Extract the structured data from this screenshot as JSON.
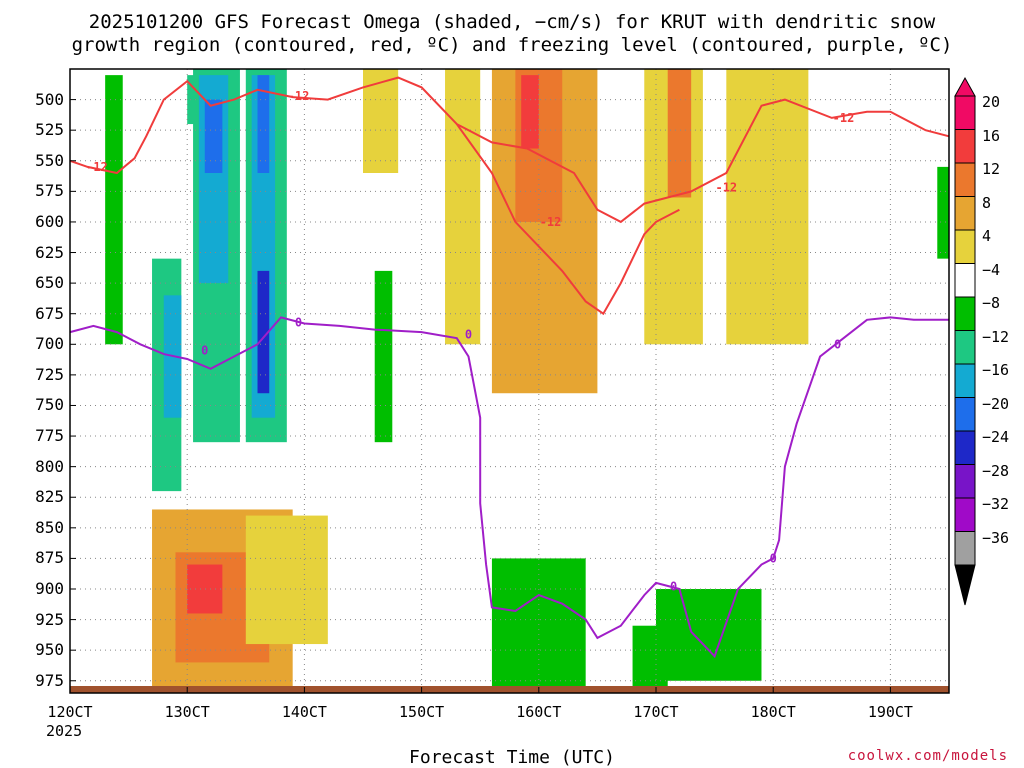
{
  "title_line1": "2025101200 GFS Forecast Omega (shaded, −cm/s) for KRUT with dendritic snow",
  "title_line2": "growth region (contoured, red, ºC) and freezing level (contoured, purple, ºC)",
  "x_axis_title": "Forecast Time (UTC)",
  "x_year": "2025",
  "credit": "coolwx.com/models",
  "chart_data": {
    "type": "heatmap",
    "title": "2025101200 GFS Forecast Omega (shaded, −cm/s) for KRUT with dendritic snow growth region (contoured, red, ºC) and freezing level (contoured, purple, ºC)",
    "xlabel": "Forecast Time (UTC)",
    "ylabel": "",
    "x_range_days": [
      12,
      19.5
    ],
    "y_range_hpa": [
      475,
      985
    ],
    "y_inverted": true,
    "grid": true,
    "x_ticks": [
      {
        "v": 12,
        "label": "120CT"
      },
      {
        "v": 13,
        "label": "130CT"
      },
      {
        "v": 14,
        "label": "140CT"
      },
      {
        "v": 15,
        "label": "150CT"
      },
      {
        "v": 16,
        "label": "160CT"
      },
      {
        "v": 17,
        "label": "170CT"
      },
      {
        "v": 18,
        "label": "180CT"
      },
      {
        "v": 19,
        "label": "190CT"
      }
    ],
    "y_ticks": [
      "500",
      "525",
      "550",
      "575",
      "600",
      "625",
      "650",
      "675",
      "700",
      "725",
      "750",
      "775",
      "800",
      "825",
      "850",
      "875",
      "900",
      "925",
      "950",
      "975"
    ],
    "colorbar": {
      "labels": [
        "20",
        "16",
        "12",
        "8",
        "4",
        "−4",
        "−8",
        "−12",
        "−16",
        "−20",
        "−24",
        "−28",
        "−32",
        "−36"
      ],
      "colors": [
        "#f00a64",
        "#f23c3c",
        "#eb782d",
        "#e6a532",
        "#e6d23c",
        "#ffffff",
        "#00be00",
        "#1ec882",
        "#14aad2",
        "#1e6eeb",
        "#1e28c8",
        "#7814c8",
        "#a00ac8",
        "#a0a0a0"
      ]
    },
    "contour_red_label": "-12",
    "contour_purple_label": "0",
    "red_contour_-12C": [
      [
        12.0,
        550
      ],
      [
        12.15,
        555
      ],
      [
        12.4,
        560
      ],
      [
        12.55,
        548
      ],
      [
        12.65,
        530
      ],
      [
        12.8,
        500
      ],
      [
        13.0,
        485
      ],
      [
        13.2,
        505
      ],
      [
        13.4,
        500
      ],
      [
        13.6,
        492
      ],
      [
        13.9,
        498
      ],
      [
        14.2,
        500
      ],
      [
        14.5,
        490
      ],
      [
        14.8,
        482
      ],
      [
        15.0,
        490
      ],
      [
        15.3,
        520
      ],
      [
        15.6,
        535
      ],
      [
        15.9,
        540
      ],
      [
        16.1,
        550
      ],
      [
        16.3,
        560
      ],
      [
        16.5,
        590
      ],
      [
        16.7,
        600
      ],
      [
        16.9,
        585
      ],
      [
        17.1,
        580
      ],
      [
        17.3,
        575
      ],
      [
        17.6,
        560
      ],
      [
        17.9,
        505
      ],
      [
        18.1,
        500
      ],
      [
        18.5,
        515
      ],
      [
        18.8,
        510
      ],
      [
        19.0,
        510
      ],
      [
        19.3,
        525
      ],
      [
        19.5,
        530
      ]
    ],
    "red_contour_-12C_lower": [
      [
        15.3,
        520
      ],
      [
        15.6,
        560
      ],
      [
        15.8,
        600
      ],
      [
        16.0,
        620
      ],
      [
        16.2,
        640
      ],
      [
        16.4,
        665
      ],
      [
        16.55,
        675
      ],
      [
        16.7,
        650
      ],
      [
        16.9,
        610
      ],
      [
        17.0,
        600
      ],
      [
        17.2,
        590
      ]
    ],
    "purple_contour_0C": [
      [
        12.0,
        690
      ],
      [
        12.2,
        685
      ],
      [
        12.4,
        690
      ],
      [
        12.6,
        700
      ],
      [
        12.8,
        708
      ],
      [
        13.0,
        712
      ],
      [
        13.2,
        720
      ],
      [
        13.4,
        710
      ],
      [
        13.6,
        700
      ],
      [
        13.8,
        678
      ],
      [
        14.0,
        683
      ],
      [
        14.3,
        685
      ],
      [
        14.6,
        688
      ],
      [
        15.0,
        690
      ],
      [
        15.3,
        695
      ],
      [
        15.4,
        710
      ],
      [
        15.5,
        760
      ],
      [
        15.5,
        830
      ],
      [
        15.55,
        880
      ],
      [
        15.6,
        915
      ],
      [
        15.8,
        918
      ],
      [
        16.0,
        905
      ],
      [
        16.2,
        912
      ],
      [
        16.4,
        925
      ],
      [
        16.5,
        940
      ],
      [
        16.7,
        930
      ],
      [
        16.9,
        905
      ],
      [
        17.0,
        895
      ],
      [
        17.2,
        900
      ],
      [
        17.3,
        935
      ],
      [
        17.5,
        955
      ],
      [
        17.7,
        900
      ],
      [
        17.9,
        880
      ],
      [
        18.0,
        875
      ],
      [
        18.05,
        860
      ],
      [
        18.1,
        800
      ],
      [
        18.2,
        765
      ],
      [
        18.4,
        710
      ],
      [
        18.6,
        695
      ],
      [
        18.8,
        680
      ],
      [
        19.0,
        678
      ],
      [
        19.2,
        680
      ],
      [
        19.5,
        680
      ]
    ],
    "shading_cells": [
      {
        "x0": 12.7,
        "x1": 12.95,
        "p0": 630,
        "p1": 820,
        "v": -8
      },
      {
        "x0": 12.8,
        "x1": 12.95,
        "p0": 660,
        "p1": 760,
        "v": -14
      },
      {
        "x0": 12.3,
        "x1": 12.45,
        "p0": 480,
        "p1": 700,
        "v": -6
      },
      {
        "x0": 13.0,
        "x1": 13.2,
        "p0": 480,
        "p1": 520,
        "v": -8
      },
      {
        "x0": 13.05,
        "x1": 13.45,
        "p0": 475,
        "p1": 780,
        "v": -10
      },
      {
        "x0": 13.1,
        "x1": 13.35,
        "p0": 480,
        "p1": 650,
        "v": -14
      },
      {
        "x0": 13.15,
        "x1": 13.3,
        "p0": 500,
        "p1": 560,
        "v": -18
      },
      {
        "x0": 13.5,
        "x1": 13.85,
        "p0": 475,
        "p1": 780,
        "v": -10
      },
      {
        "x0": 13.55,
        "x1": 13.75,
        "p0": 480,
        "p1": 760,
        "v": -14
      },
      {
        "x0": 13.6,
        "x1": 13.7,
        "p0": 640,
        "p1": 740,
        "v": -20
      },
      {
        "x0": 13.6,
        "x1": 13.7,
        "p0": 480,
        "p1": 560,
        "v": -18
      },
      {
        "x0": 12.7,
        "x1": 13.9,
        "p0": 835,
        "p1": 985,
        "v": 6
      },
      {
        "x0": 12.9,
        "x1": 13.7,
        "p0": 870,
        "p1": 960,
        "v": 10
      },
      {
        "x0": 13.0,
        "x1": 13.3,
        "p0": 880,
        "p1": 920,
        "v": 14
      },
      {
        "x0": 13.5,
        "x1": 14.2,
        "p0": 840,
        "p1": 945,
        "v": 5
      },
      {
        "x0": 15.6,
        "x1": 16.4,
        "p0": 875,
        "p1": 980,
        "v": -6
      },
      {
        "x0": 16.8,
        "x1": 17.1,
        "p0": 930,
        "p1": 980,
        "v": -6
      },
      {
        "x0": 17.0,
        "x1": 17.9,
        "p0": 900,
        "p1": 975,
        "v": -6
      },
      {
        "x0": 14.6,
        "x1": 14.75,
        "p0": 640,
        "p1": 780,
        "v": -6
      },
      {
        "x0": 15.2,
        "x1": 15.5,
        "p0": 475,
        "p1": 700,
        "v": 5
      },
      {
        "x0": 15.6,
        "x1": 16.5,
        "p0": 475,
        "p1": 740,
        "v": 6
      },
      {
        "x0": 15.8,
        "x1": 16.2,
        "p0": 475,
        "p1": 600,
        "v": 10
      },
      {
        "x0": 15.85,
        "x1": 16.0,
        "p0": 480,
        "p1": 540,
        "v": 16
      },
      {
        "x0": 16.9,
        "x1": 17.4,
        "p0": 475,
        "p1": 700,
        "v": 5
      },
      {
        "x0": 17.1,
        "x1": 17.3,
        "p0": 475,
        "p1": 580,
        "v": 10
      },
      {
        "x0": 17.6,
        "x1": 18.3,
        "p0": 475,
        "p1": 700,
        "v": 5
      },
      {
        "x0": 14.5,
        "x1": 14.8,
        "p0": 475,
        "p1": 560,
        "v": 5
      },
      {
        "x0": 19.4,
        "x1": 19.5,
        "p0": 555,
        "p1": 630,
        "v": -6
      }
    ]
  }
}
